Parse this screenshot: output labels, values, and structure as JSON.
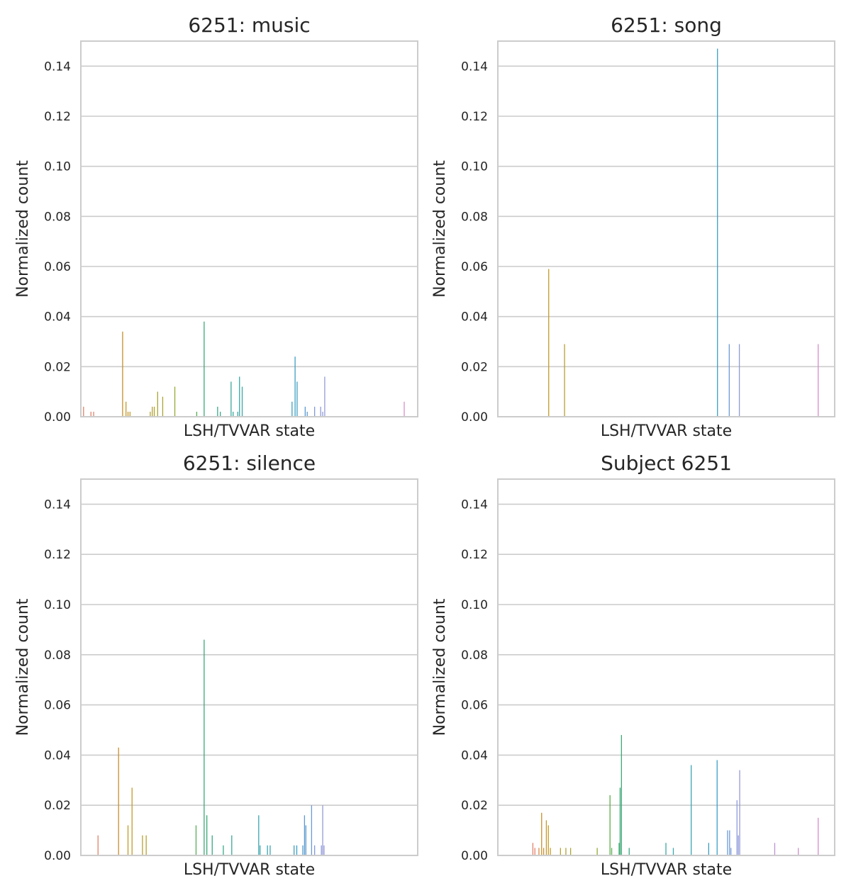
{
  "chart_data": [
    {
      "type": "bar",
      "title": "6251: music",
      "xlabel": "LSH/TVVAR state",
      "ylabel": "Normalized count",
      "ylim": [
        0,
        0.15
      ],
      "yticks": [
        "0.00",
        "0.02",
        "0.04",
        "0.06",
        "0.08",
        "0.10",
        "0.12",
        "0.14"
      ],
      "grid": true,
      "xtick_labels_visible": false,
      "bars": [
        {
          "state": 0.008,
          "value": 0.004,
          "color": "#e1826b"
        },
        {
          "state": 0.03,
          "value": 0.002,
          "color": "#e1826b"
        },
        {
          "state": 0.038,
          "value": 0.002,
          "color": "#e1826b"
        },
        {
          "state": 0.124,
          "value": 0.034,
          "color": "#c48f2b"
        },
        {
          "state": 0.134,
          "value": 0.006,
          "color": "#c49a2b"
        },
        {
          "state": 0.14,
          "value": 0.002,
          "color": "#c49a2b"
        },
        {
          "state": 0.146,
          "value": 0.002,
          "color": "#c49a2b"
        },
        {
          "state": 0.206,
          "value": 0.002,
          "color": "#b2a132"
        },
        {
          "state": 0.212,
          "value": 0.004,
          "color": "#b2a132"
        },
        {
          "state": 0.218,
          "value": 0.004,
          "color": "#b2a132"
        },
        {
          "state": 0.228,
          "value": 0.01,
          "color": "#a8a432"
        },
        {
          "state": 0.243,
          "value": 0.008,
          "color": "#a8a432"
        },
        {
          "state": 0.279,
          "value": 0.012,
          "color": "#96a932"
        },
        {
          "state": 0.344,
          "value": 0.002,
          "color": "#55ae57"
        },
        {
          "state": 0.366,
          "value": 0.038,
          "color": "#3ba877"
        },
        {
          "state": 0.406,
          "value": 0.004,
          "color": "#38a98a"
        },
        {
          "state": 0.414,
          "value": 0.002,
          "color": "#38a98a"
        },
        {
          "state": 0.446,
          "value": 0.014,
          "color": "#39a89a"
        },
        {
          "state": 0.452,
          "value": 0.002,
          "color": "#39a89a"
        },
        {
          "state": 0.466,
          "value": 0.002,
          "color": "#3aa7a3"
        },
        {
          "state": 0.471,
          "value": 0.016,
          "color": "#3aa7a8"
        },
        {
          "state": 0.479,
          "value": 0.012,
          "color": "#3aa7a8"
        },
        {
          "state": 0.627,
          "value": 0.006,
          "color": "#3b9fc0"
        },
        {
          "state": 0.636,
          "value": 0.024,
          "color": "#3b9fc0"
        },
        {
          "state": 0.642,
          "value": 0.014,
          "color": "#3d9ec7"
        },
        {
          "state": 0.666,
          "value": 0.004,
          "color": "#5a99d0"
        },
        {
          "state": 0.672,
          "value": 0.002,
          "color": "#5a99d0"
        },
        {
          "state": 0.694,
          "value": 0.004,
          "color": "#7e9ad8"
        },
        {
          "state": 0.712,
          "value": 0.004,
          "color": "#8e9ad9"
        },
        {
          "state": 0.718,
          "value": 0.002,
          "color": "#8e9ad9"
        },
        {
          "state": 0.724,
          "value": 0.016,
          "color": "#949bd8"
        },
        {
          "state": 0.96,
          "value": 0.006,
          "color": "#d58fc8"
        }
      ]
    },
    {
      "type": "bar",
      "title": "6251: song",
      "xlabel": "LSH/TVVAR state",
      "ylabel": "Normalized count",
      "ylim": [
        0,
        0.15
      ],
      "yticks": [
        "0.00",
        "0.02",
        "0.04",
        "0.06",
        "0.08",
        "0.10",
        "0.12",
        "0.14"
      ],
      "grid": true,
      "xtick_labels_visible": false,
      "bars": [
        {
          "state": 0.151,
          "value": 0.059,
          "color": "#c49a2b"
        },
        {
          "state": 0.198,
          "value": 0.029,
          "color": "#b7a032"
        },
        {
          "state": 0.652,
          "value": 0.147,
          "color": "#3d9ec7"
        },
        {
          "state": 0.687,
          "value": 0.029,
          "color": "#6c9bd6"
        },
        {
          "state": 0.717,
          "value": 0.029,
          "color": "#8e9ad9"
        },
        {
          "state": 0.951,
          "value": 0.029,
          "color": "#d58fc8"
        }
      ]
    },
    {
      "type": "bar",
      "title": "6251: silence",
      "xlabel": "LSH/TVVAR state",
      "ylabel": "Normalized count",
      "ylim": [
        0,
        0.15
      ],
      "yticks": [
        "0.00",
        "0.02",
        "0.04",
        "0.06",
        "0.08",
        "0.10",
        "0.12",
        "0.14"
      ],
      "grid": true,
      "xtick_labels_visible": false,
      "bars": [
        {
          "state": 0.051,
          "value": 0.008,
          "color": "#e1826b"
        },
        {
          "state": 0.112,
          "value": 0.043,
          "color": "#c9902b"
        },
        {
          "state": 0.14,
          "value": 0.012,
          "color": "#c49a2b"
        },
        {
          "state": 0.152,
          "value": 0.027,
          "color": "#c49a2b"
        },
        {
          "state": 0.183,
          "value": 0.008,
          "color": "#b9a032"
        },
        {
          "state": 0.194,
          "value": 0.008,
          "color": "#b9a032"
        },
        {
          "state": 0.342,
          "value": 0.012,
          "color": "#55ae57"
        },
        {
          "state": 0.366,
          "value": 0.086,
          "color": "#3ba877"
        },
        {
          "state": 0.374,
          "value": 0.016,
          "color": "#3ba877"
        },
        {
          "state": 0.39,
          "value": 0.008,
          "color": "#39a984"
        },
        {
          "state": 0.423,
          "value": 0.004,
          "color": "#38a98a"
        },
        {
          "state": 0.448,
          "value": 0.008,
          "color": "#39a89a"
        },
        {
          "state": 0.528,
          "value": 0.016,
          "color": "#3aa7b0"
        },
        {
          "state": 0.532,
          "value": 0.004,
          "color": "#3aa7b0"
        },
        {
          "state": 0.554,
          "value": 0.004,
          "color": "#3aa6b5"
        },
        {
          "state": 0.562,
          "value": 0.004,
          "color": "#3aa6b5"
        },
        {
          "state": 0.633,
          "value": 0.004,
          "color": "#3b9fc0"
        },
        {
          "state": 0.641,
          "value": 0.004,
          "color": "#3d9ec7"
        },
        {
          "state": 0.659,
          "value": 0.004,
          "color": "#4e9bcc"
        },
        {
          "state": 0.664,
          "value": 0.016,
          "color": "#5a99d0"
        },
        {
          "state": 0.668,
          "value": 0.012,
          "color": "#5a99d0"
        },
        {
          "state": 0.685,
          "value": 0.02,
          "color": "#6c9bd6"
        },
        {
          "state": 0.694,
          "value": 0.004,
          "color": "#7e9ad8"
        },
        {
          "state": 0.714,
          "value": 0.004,
          "color": "#8e9ad9"
        },
        {
          "state": 0.718,
          "value": 0.02,
          "color": "#949bd8"
        },
        {
          "state": 0.722,
          "value": 0.004,
          "color": "#949bd8"
        }
      ]
    },
    {
      "type": "bar",
      "title": "Subject 6251",
      "xlabel": "LSH/TVVAR state",
      "ylabel": "Normalized count",
      "ylim": [
        0,
        0.15
      ],
      "yticks": [
        "0.00",
        "0.02",
        "0.04",
        "0.06",
        "0.08",
        "0.10",
        "0.12",
        "0.14"
      ],
      "grid": true,
      "xtick_labels_visible": false,
      "bars": [
        {
          "state": 0.104,
          "value": 0.005,
          "color": "#e1826b"
        },
        {
          "state": 0.11,
          "value": 0.003,
          "color": "#e1826b"
        },
        {
          "state": 0.122,
          "value": 0.003,
          "color": "#d98b4e"
        },
        {
          "state": 0.13,
          "value": 0.017,
          "color": "#c9902b"
        },
        {
          "state": 0.136,
          "value": 0.003,
          "color": "#c9902b"
        },
        {
          "state": 0.144,
          "value": 0.014,
          "color": "#c49a2b"
        },
        {
          "state": 0.15,
          "value": 0.012,
          "color": "#c49a2b"
        },
        {
          "state": 0.156,
          "value": 0.003,
          "color": "#c49a2b"
        },
        {
          "state": 0.186,
          "value": 0.003,
          "color": "#b9a032"
        },
        {
          "state": 0.202,
          "value": 0.003,
          "color": "#b2a132"
        },
        {
          "state": 0.216,
          "value": 0.003,
          "color": "#aaa432"
        },
        {
          "state": 0.295,
          "value": 0.003,
          "color": "#8eaa32"
        },
        {
          "state": 0.333,
          "value": 0.024,
          "color": "#5dad48"
        },
        {
          "state": 0.338,
          "value": 0.003,
          "color": "#55ae57"
        },
        {
          "state": 0.36,
          "value": 0.005,
          "color": "#3fa86b"
        },
        {
          "state": 0.363,
          "value": 0.027,
          "color": "#3ba877"
        },
        {
          "state": 0.367,
          "value": 0.048,
          "color": "#3ba877"
        },
        {
          "state": 0.39,
          "value": 0.003,
          "color": "#39a984"
        },
        {
          "state": 0.499,
          "value": 0.005,
          "color": "#3aa7a8"
        },
        {
          "state": 0.521,
          "value": 0.003,
          "color": "#3aa7b0"
        },
        {
          "state": 0.574,
          "value": 0.036,
          "color": "#3aa6b5"
        },
        {
          "state": 0.626,
          "value": 0.005,
          "color": "#3b9fc0"
        },
        {
          "state": 0.651,
          "value": 0.038,
          "color": "#3d9ec7"
        },
        {
          "state": 0.682,
          "value": 0.01,
          "color": "#6c9bd6"
        },
        {
          "state": 0.688,
          "value": 0.01,
          "color": "#6c9bd6"
        },
        {
          "state": 0.692,
          "value": 0.003,
          "color": "#7e9ad8"
        },
        {
          "state": 0.71,
          "value": 0.022,
          "color": "#8e9ad9"
        },
        {
          "state": 0.714,
          "value": 0.008,
          "color": "#8e9ad9"
        },
        {
          "state": 0.718,
          "value": 0.034,
          "color": "#949bd8"
        },
        {
          "state": 0.822,
          "value": 0.005,
          "color": "#bb93d3"
        },
        {
          "state": 0.892,
          "value": 0.003,
          "color": "#cf8fcb"
        },
        {
          "state": 0.951,
          "value": 0.015,
          "color": "#d58fc8"
        }
      ]
    }
  ]
}
